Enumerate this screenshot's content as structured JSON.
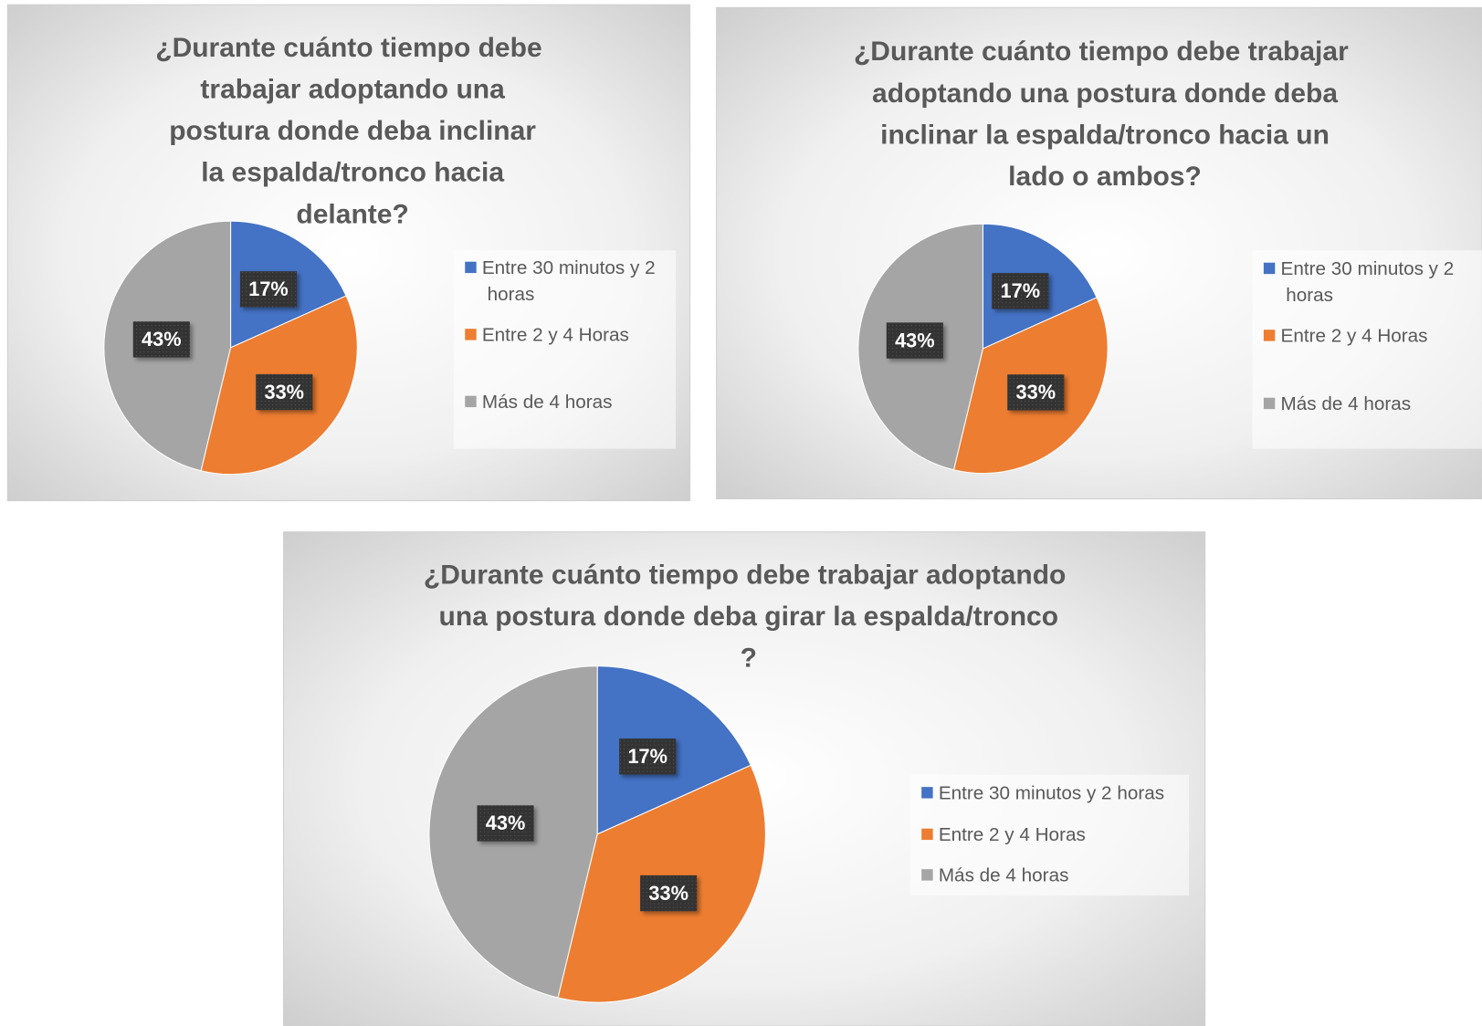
{
  "chart_data": [
    {
      "type": "pie",
      "title": "¿Durante cuánto tiempo debe trabajar adoptando una postura donde deba inclinar la espalda/tronco hacia delante?",
      "categories": [
        "Entre 30 minutos y 2 horas",
        "Entre 2 y 4 Horas",
        "Más de 4 horas"
      ],
      "values": [
        17,
        33,
        43
      ],
      "value_labels": [
        "17%",
        "33%",
        "43%"
      ],
      "colors": [
        "#4472c4",
        "#ed7d31",
        "#a5a5a5"
      ],
      "legend": "right"
    },
    {
      "type": "pie",
      "title": "¿Durante cuánto tiempo debe trabajar adoptando una postura donde deba inclinar la espalda/tronco hacia un lado o ambos?",
      "categories": [
        "Entre 30 minutos y 2 horas",
        "Entre 2 y 4 Horas",
        "Más de 4 horas"
      ],
      "values": [
        17,
        33,
        43
      ],
      "value_labels": [
        "17%",
        "33%",
        "43%"
      ],
      "colors": [
        "#4472c4",
        "#ed7d31",
        "#a5a5a5"
      ],
      "legend": "right"
    },
    {
      "type": "pie",
      "title": "¿Durante cuánto tiempo debe trabajar adoptando una postura donde deba girar la espalda/tronco ?",
      "categories": [
        "Entre 30 minutos y 2 horas",
        "Entre 2 y 4 Horas",
        "Más de 4 horas"
      ],
      "values": [
        17,
        33,
        43
      ],
      "value_labels": [
        "17%",
        "33%",
        "43%"
      ],
      "colors": [
        "#4472c4",
        "#ed7d31",
        "#a5a5a5"
      ],
      "legend": "right"
    }
  ]
}
